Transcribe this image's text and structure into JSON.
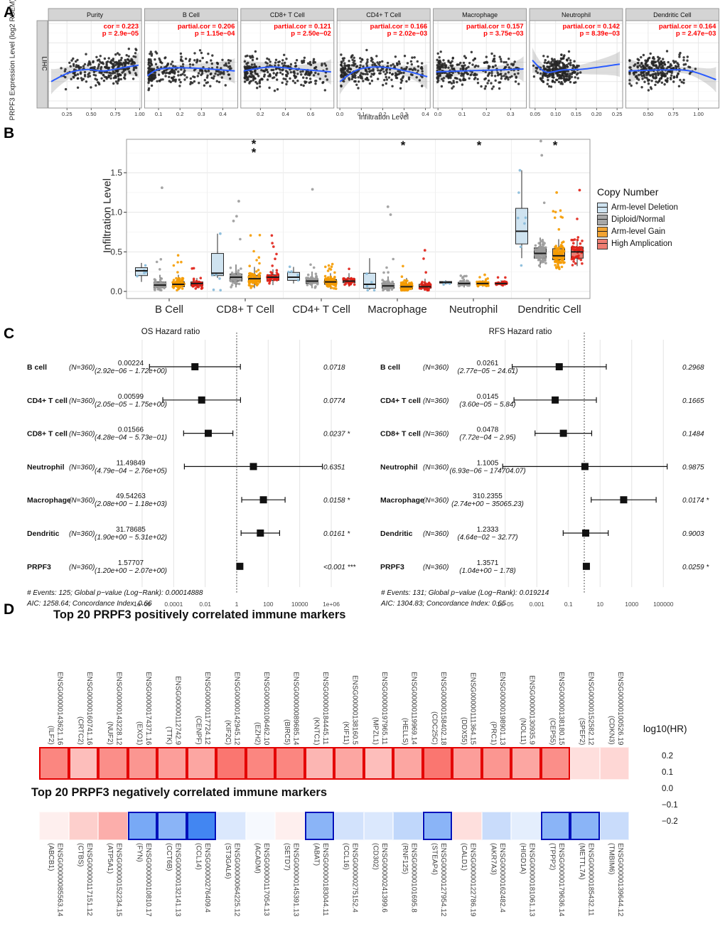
{
  "panels": {
    "a": "A",
    "b": "B",
    "c": "C",
    "d": "D"
  },
  "chart_data": [
    {
      "type": "scatter",
      "panel": "A",
      "cancer_type": "LIHC",
      "ylabel": "PRPF3 Expression Level (log2 RSEM)",
      "xlabel": "Infiltration Level",
      "y_ticks": [
        "8",
        "9",
        "10",
        "11",
        "12"
      ],
      "ylim": [
        7.7,
        12.2
      ],
      "facets": [
        {
          "title": "Purity",
          "cor": "cor = 0.223",
          "p": "p = 2.9e−05",
          "x_ticks": [
            "0.25",
            "0.50",
            "0.75",
            "1.00"
          ]
        },
        {
          "title": "B Cell",
          "cor": "partial.cor = 0.206",
          "p": "p = 1.15e−04",
          "x_ticks": [
            "0.1",
            "0.2",
            "0.3",
            "0.4"
          ]
        },
        {
          "title": "CD8+ T Cell",
          "cor": "partial.cor = 0.121",
          "p": "p = 2.50e−02",
          "x_ticks": [
            "0.2",
            "0.4",
            "0.6"
          ]
        },
        {
          "title": "CD4+ T Cell",
          "cor": "partial.cor = 0.166",
          "p": "p = 2.02e−03",
          "x_ticks": [
            "0.0",
            "0.1",
            "0.2",
            "0.3",
            "0.4"
          ]
        },
        {
          "title": "Macrophage",
          "cor": "partial.cor = 0.157",
          "p": "p = 3.75e−03",
          "x_ticks": [
            "0.0",
            "0.1",
            "0.2",
            "0.3"
          ]
        },
        {
          "title": "Neutrophil",
          "cor": "partial.cor = 0.142",
          "p": "p = 8.39e−03",
          "x_ticks": [
            "0.05",
            "0.10",
            "0.15",
            "0.20",
            "0.25"
          ]
        },
        {
          "title": "Dendritic Cell",
          "cor": "partial.cor = 0.164",
          "p": "p = 2.47e−03",
          "x_ticks": [
            "0.50",
            "0.75",
            "1.00"
          ]
        }
      ]
    },
    {
      "type": "box",
      "panel": "B",
      "ylabel": "Infiltration Level",
      "y_ticks": [
        "0.0",
        "0.5",
        "1.0",
        "1.5"
      ],
      "ylim": [
        0,
        1.92
      ],
      "legend": {
        "title": "Copy Number",
        "items": [
          {
            "label": "Arm-level Deletion",
            "fill": "#cfe3f0",
            "point": "#85b9d9"
          },
          {
            "label": "Diploid/Normal",
            "fill": "#a8a8a8",
            "point": "#9b9b9b"
          },
          {
            "label": "Arm-level Gain",
            "fill": "#f2a434",
            "point": "#f59b00"
          },
          {
            "label": "High Amplication",
            "fill": "#ed7d72",
            "point": "#e02016"
          }
        ]
      },
      "categories": [
        "B Cell",
        "CD8+ T Cell",
        "CD4+ T Cell",
        "Macrophage",
        "Neutrophil",
        "Dendritic Cell"
      ],
      "significance": [
        "",
        "**",
        "",
        "*",
        "*",
        "*"
      ],
      "series": [
        {
          "category": "B Cell",
          "boxes": [
            [
              0.12,
              0.2,
              0.26,
              0.3,
              0.36
            ],
            [
              0.02,
              0.05,
              0.08,
              0.12,
              0.21
            ],
            [
              0.02,
              0.06,
              0.09,
              0.12,
              0.21
            ],
            [
              0.04,
              0.07,
              0.1,
              0.12,
              0.17
            ]
          ]
        },
        {
          "category": "CD8+ T Cell",
          "boxes": [
            [
              0.17,
              0.2,
              0.23,
              0.48,
              0.73
            ],
            [
              0.05,
              0.13,
              0.18,
              0.22,
              0.34
            ],
            [
              0.04,
              0.12,
              0.16,
              0.2,
              0.31
            ],
            [
              0.08,
              0.14,
              0.18,
              0.21,
              0.28
            ]
          ]
        },
        {
          "category": "CD4+ T Cell",
          "boxes": [
            [
              0.1,
              0.14,
              0.18,
              0.24,
              0.31
            ],
            [
              0.04,
              0.1,
              0.13,
              0.16,
              0.25
            ],
            [
              0.03,
              0.09,
              0.12,
              0.15,
              0.23
            ],
            [
              0.06,
              0.11,
              0.13,
              0.16,
              0.23
            ]
          ]
        },
        {
          "category": "Macrophage",
          "boxes": [
            [
              0.02,
              0.04,
              0.09,
              0.23,
              0.42
            ],
            [
              0.01,
              0.04,
              0.07,
              0.1,
              0.19
            ],
            [
              0.01,
              0.03,
              0.06,
              0.09,
              0.17
            ],
            [
              0.01,
              0.04,
              0.06,
              0.09,
              0.16
            ]
          ]
        },
        {
          "category": "Neutrophil",
          "boxes": [
            [
              0.09,
              0.105,
              0.115,
              0.125,
              0.14
            ],
            [
              0.05,
              0.08,
              0.1,
              0.115,
              0.16
            ],
            [
              0.06,
              0.085,
              0.1,
              0.11,
              0.14
            ],
            [
              0.07,
              0.09,
              0.1,
              0.11,
              0.14
            ]
          ]
        },
        {
          "category": "Dendritic Cell",
          "boxes": [
            [
              0.42,
              0.6,
              0.76,
              1.05,
              1.53
            ],
            [
              0.3,
              0.42,
              0.48,
              0.55,
              0.68
            ],
            [
              0.28,
              0.4,
              0.45,
              0.54,
              0.66
            ],
            [
              0.32,
              0.42,
              0.5,
              0.56,
              0.65
            ]
          ]
        }
      ]
    },
    {
      "type": "forest",
      "panel": "C",
      "plots": [
        {
          "title": "OS Hazard ratio",
          "reference": 1,
          "ticks": [
            {
              "label": "1e−06",
              "v": 1e-06
            },
            {
              "label": "0.0001",
              "v": 0.0001
            },
            {
              "label": "0.01",
              "v": 0.01
            },
            {
              "label": "1",
              "v": 1
            },
            {
              "label": "100",
              "v": 100
            },
            {
              "label": "10000",
              "v": 10000
            },
            {
              "label": "1e+06",
              "v": 1000000
            }
          ],
          "rows": [
            {
              "name": "B cell",
              "n": "(N=360)",
              "est_label": "0.00224",
              "ci_label": "(2.92e−06 − 1.72e+00)",
              "p": "0.0718",
              "est": 0.00224,
              "lo": 2.92e-06,
              "hi": 1.72
            },
            {
              "name": "CD4+ T cell",
              "n": "(N=360)",
              "est_label": "0.00599",
              "ci_label": "(2.05e−05 − 1.75e+00)",
              "p": "0.0774",
              "est": 0.00599,
              "lo": 2.05e-05,
              "hi": 1.75
            },
            {
              "name": "CD8+ T cell",
              "n": "(N=360)",
              "est_label": "0.01566",
              "ci_label": "(4.28e−04 − 5.73e−01)",
              "p": "0.0237 *",
              "est": 0.01566,
              "lo": 0.000428,
              "hi": 0.573
            },
            {
              "name": "Neutrophil",
              "n": "(N=360)",
              "est_label": "11.49849",
              "ci_label": "(4.79e−04 − 2.76e+05)",
              "p": "0.6351",
              "est": 11.49849,
              "lo": 0.000479,
              "hi": 276000
            },
            {
              "name": "Macrophage",
              "n": "(N=360)",
              "est_label": "49.54263",
              "ci_label": "(2.08e+00 − 1.18e+03)",
              "p": "0.0158 *",
              "est": 49.54263,
              "lo": 2.08,
              "hi": 1180
            },
            {
              "name": "Dendritic",
              "n": "(N=360)",
              "est_label": "31.78685",
              "ci_label": "(1.90e+00 − 5.31e+02)",
              "p": "0.0161 *",
              "est": 31.78685,
              "lo": 1.9,
              "hi": 531
            },
            {
              "name": "PRPF3",
              "n": "(N=360)",
              "est_label": "1.57707",
              "ci_label": "(1.20e+00 − 2.07e+00)",
              "p": "<0.001 ***",
              "est": 1.57707,
              "lo": 1.2,
              "hi": 2.07
            }
          ],
          "footer1": "# Events: 125; Global p−value (Log−Rank): 0.00014888",
          "footer2": "AIC: 1258.64; Concordance Index: 0.66"
        },
        {
          "title": "RFS Hazard ratio",
          "reference": 1,
          "ticks": [
            {
              "label": "1e−05",
              "v": 1e-05
            },
            {
              "label": "0.001",
              "v": 0.001
            },
            {
              "label": "0.1",
              "v": 0.1
            },
            {
              "label": "10",
              "v": 10
            },
            {
              "label": "1000",
              "v": 1000
            },
            {
              "label": "100000",
              "v": 100000
            }
          ],
          "rows": [
            {
              "name": "B cell",
              "n": "(N=360)",
              "est_label": "0.0261",
              "ci_label": "(2.77e−05 − 24.61)",
              "p": "0.2968",
              "est": 0.0261,
              "lo": 2.77e-05,
              "hi": 24.61
            },
            {
              "name": "CD4+ T cell",
              "n": "(N=360)",
              "est_label": "0.0145",
              "ci_label": "(3.60e−05 − 5.84)",
              "p": "0.1665",
              "est": 0.0145,
              "lo": 3.6e-05,
              "hi": 5.84
            },
            {
              "name": "CD8+ T cell",
              "n": "(N=360)",
              "est_label": "0.0478",
              "ci_label": "(7.72e−04 − 2.95)",
              "p": "0.1484",
              "est": 0.0478,
              "lo": 0.000772,
              "hi": 2.95
            },
            {
              "name": "Neutrophil",
              "n": "(N=360)",
              "est_label": "1.1005",
              "ci_label": "(6.93e−06 − 174704.07)",
              "p": "0.9875",
              "est": 1.1005,
              "lo": 6.93e-06,
              "hi": 174704.07
            },
            {
              "name": "Macrophage",
              "n": "(N=360)",
              "est_label": "310.2355",
              "ci_label": "(2.74e+00 − 35065.23)",
              "p": "0.0174 *",
              "est": 310.2355,
              "lo": 2.74,
              "hi": 35065.23
            },
            {
              "name": "Dendritic",
              "n": "(N=360)",
              "est_label": "1.2333",
              "ci_label": "(4.64e−02 − 32.77)",
              "p": "0.9003",
              "est": 1.2333,
              "lo": 0.0464,
              "hi": 32.77
            },
            {
              "name": "PRPF3",
              "n": "(N=360)",
              "est_label": "1.3571",
              "ci_label": "(1.04e+00 − 1.78)",
              "p": "0.0259 *",
              "est": 1.3571,
              "lo": 1.04,
              "hi": 1.78
            }
          ],
          "footer1": "# Events: 131; Global p−value (Log−Rank): 0.019214",
          "footer2": "AIC: 1304.83; Concordance Index: 0.65"
        }
      ]
    },
    {
      "type": "heatmap",
      "panel": "D",
      "legend": {
        "title": "log10(HR)",
        "ticks": [
          "0.2",
          "0.1",
          "0.0",
          "−0.1",
          "−0.2"
        ],
        "max_abs": 0.25,
        "positive_color": "#f8352c",
        "negative_color": "#1e6ff0"
      },
      "maps": [
        {
          "title": "Top 20 PRPF3 positively correlated immune markers",
          "highlight_border_color": "#e40000",
          "columns": [
            {
              "id": "ENSG00000143621.16",
              "gene": "ILF2",
              "value": 0.15,
              "highlight": true
            },
            {
              "id": "ENSG00000160741.16",
              "gene": "CRTC2",
              "value": 0.08,
              "highlight": true
            },
            {
              "id": "ENSG00000143228.12",
              "gene": "NUF2",
              "value": 0.14,
              "highlight": true
            },
            {
              "id": "ENSG00000174371.16",
              "gene": "EXO1",
              "value": 0.13,
              "highlight": true
            },
            {
              "id": "ENSG00000112742.9",
              "gene": "TTK",
              "value": 0.12,
              "highlight": true
            },
            {
              "id": "ENSG00000117724.12",
              "gene": "CENPF",
              "value": 0.11,
              "highlight": true
            },
            {
              "id": "ENSG00000142945.12",
              "gene": "KIF2C",
              "value": 0.17,
              "highlight": true
            },
            {
              "id": "ENSG00000106462.10",
              "gene": "EZH2",
              "value": 0.15,
              "highlight": true
            },
            {
              "id": "ENSG00000089685.14",
              "gene": "BIRC5",
              "value": 0.15,
              "highlight": true
            },
            {
              "id": "ENSG00000184445.11",
              "gene": "KNTC1",
              "value": 0.09,
              "highlight": true
            },
            {
              "id": "ENSG00000138160.5",
              "gene": "KIF11",
              "value": 0.11,
              "highlight": true
            },
            {
              "id": "ENSG00000197965.11",
              "gene": "MPZL1",
              "value": 0.08,
              "highlight": true
            },
            {
              "id": "ENSG00000119969.14",
              "gene": "HELLS",
              "value": 0.11,
              "highlight": true
            },
            {
              "id": "ENSG00000158402.18",
              "gene": "CDC25C",
              "value": 0.17,
              "highlight": true
            },
            {
              "id": "ENSG00000111364.15",
              "gene": "DDX55",
              "value": 0.12,
              "highlight": true
            },
            {
              "id": "ENSG00000198901.13",
              "gene": "PRC1",
              "value": 0.13,
              "highlight": true
            },
            {
              "id": "ENSG00000130935.9",
              "gene": "NOL11",
              "value": 0.11,
              "highlight": true
            },
            {
              "id": "ENSG00000138180.15",
              "gene": "CEP55",
              "value": 0.14,
              "highlight": true
            },
            {
              "id": "ENSG00000152582.12",
              "gene": "SPEF2",
              "value": 0.04,
              "highlight": false
            },
            {
              "id": "ENSG00000100526.19",
              "gene": "CDKN3",
              "value": 0.05,
              "highlight": false
            }
          ]
        },
        {
          "title": "Top 20 PRPF3 negatively correlated immune markers",
          "highlight_border_color": "#0011bb",
          "columns": [
            {
              "id": "ENSG00000085563.14",
              "gene": "ABCB1",
              "value": 0.02,
              "highlight": false
            },
            {
              "id": "ENSG00000117151.12",
              "gene": "CTBS",
              "value": 0.06,
              "highlight": false
            },
            {
              "id": "ENSG00000152234.15",
              "gene": "ATP5A1",
              "value": 0.1,
              "highlight": false
            },
            {
              "id": "ENSG00000010810.17",
              "gene": "FYN",
              "value": -0.15,
              "highlight": true
            },
            {
              "id": "ENSG00000132141.13",
              "gene": "CCT6B",
              "value": -0.13,
              "highlight": true
            },
            {
              "id": "ENSG00000276409.4",
              "gene": "CCL14",
              "value": -0.21,
              "highlight": true
            },
            {
              "id": "ENSG00000064225.12",
              "gene": "ST3GAL6",
              "value": -0.04,
              "highlight": false
            },
            {
              "id": "ENSG00000117054.13",
              "gene": "ACADM",
              "value": -0.01,
              "highlight": false
            },
            {
              "id": "ENSG00000145391.13",
              "gene": "SETD7",
              "value": 0.02,
              "highlight": false
            },
            {
              "id": "ENSG00000183044.11",
              "gene": "ABAT",
              "value": -0.13,
              "highlight": true
            },
            {
              "id": "ENSG00000275152.4",
              "gene": "CCL16",
              "value": -0.05,
              "highlight": false
            },
            {
              "id": "ENSG00000241399.6",
              "gene": "CD302",
              "value": -0.04,
              "highlight": false
            },
            {
              "id": "ENSG00000101695.8",
              "gene": "RNF125",
              "value": -0.07,
              "highlight": false
            },
            {
              "id": "ENSG00000127954.12",
              "gene": "STEAP4",
              "value": -0.13,
              "highlight": true
            },
            {
              "id": "ENSG00000122786.19",
              "gene": "CALD1",
              "value": 0.04,
              "highlight": false
            },
            {
              "id": "ENSG00000162482.4",
              "gene": "AKR7A3",
              "value": -0.06,
              "highlight": false
            },
            {
              "id": "ENSG00000181061.13",
              "gene": "HIGD1A",
              "value": -0.03,
              "highlight": false
            },
            {
              "id": "ENSG00000179636.14",
              "gene": "TPPP2",
              "value": -0.13,
              "highlight": true
            },
            {
              "id": "ENSG00000185432.11",
              "gene": "METTL7A",
              "value": -0.13,
              "highlight": true
            },
            {
              "id": "ENSG00000139644.12",
              "gene": "TMBIM6",
              "value": -0.06,
              "highlight": false
            }
          ]
        }
      ]
    }
  ]
}
